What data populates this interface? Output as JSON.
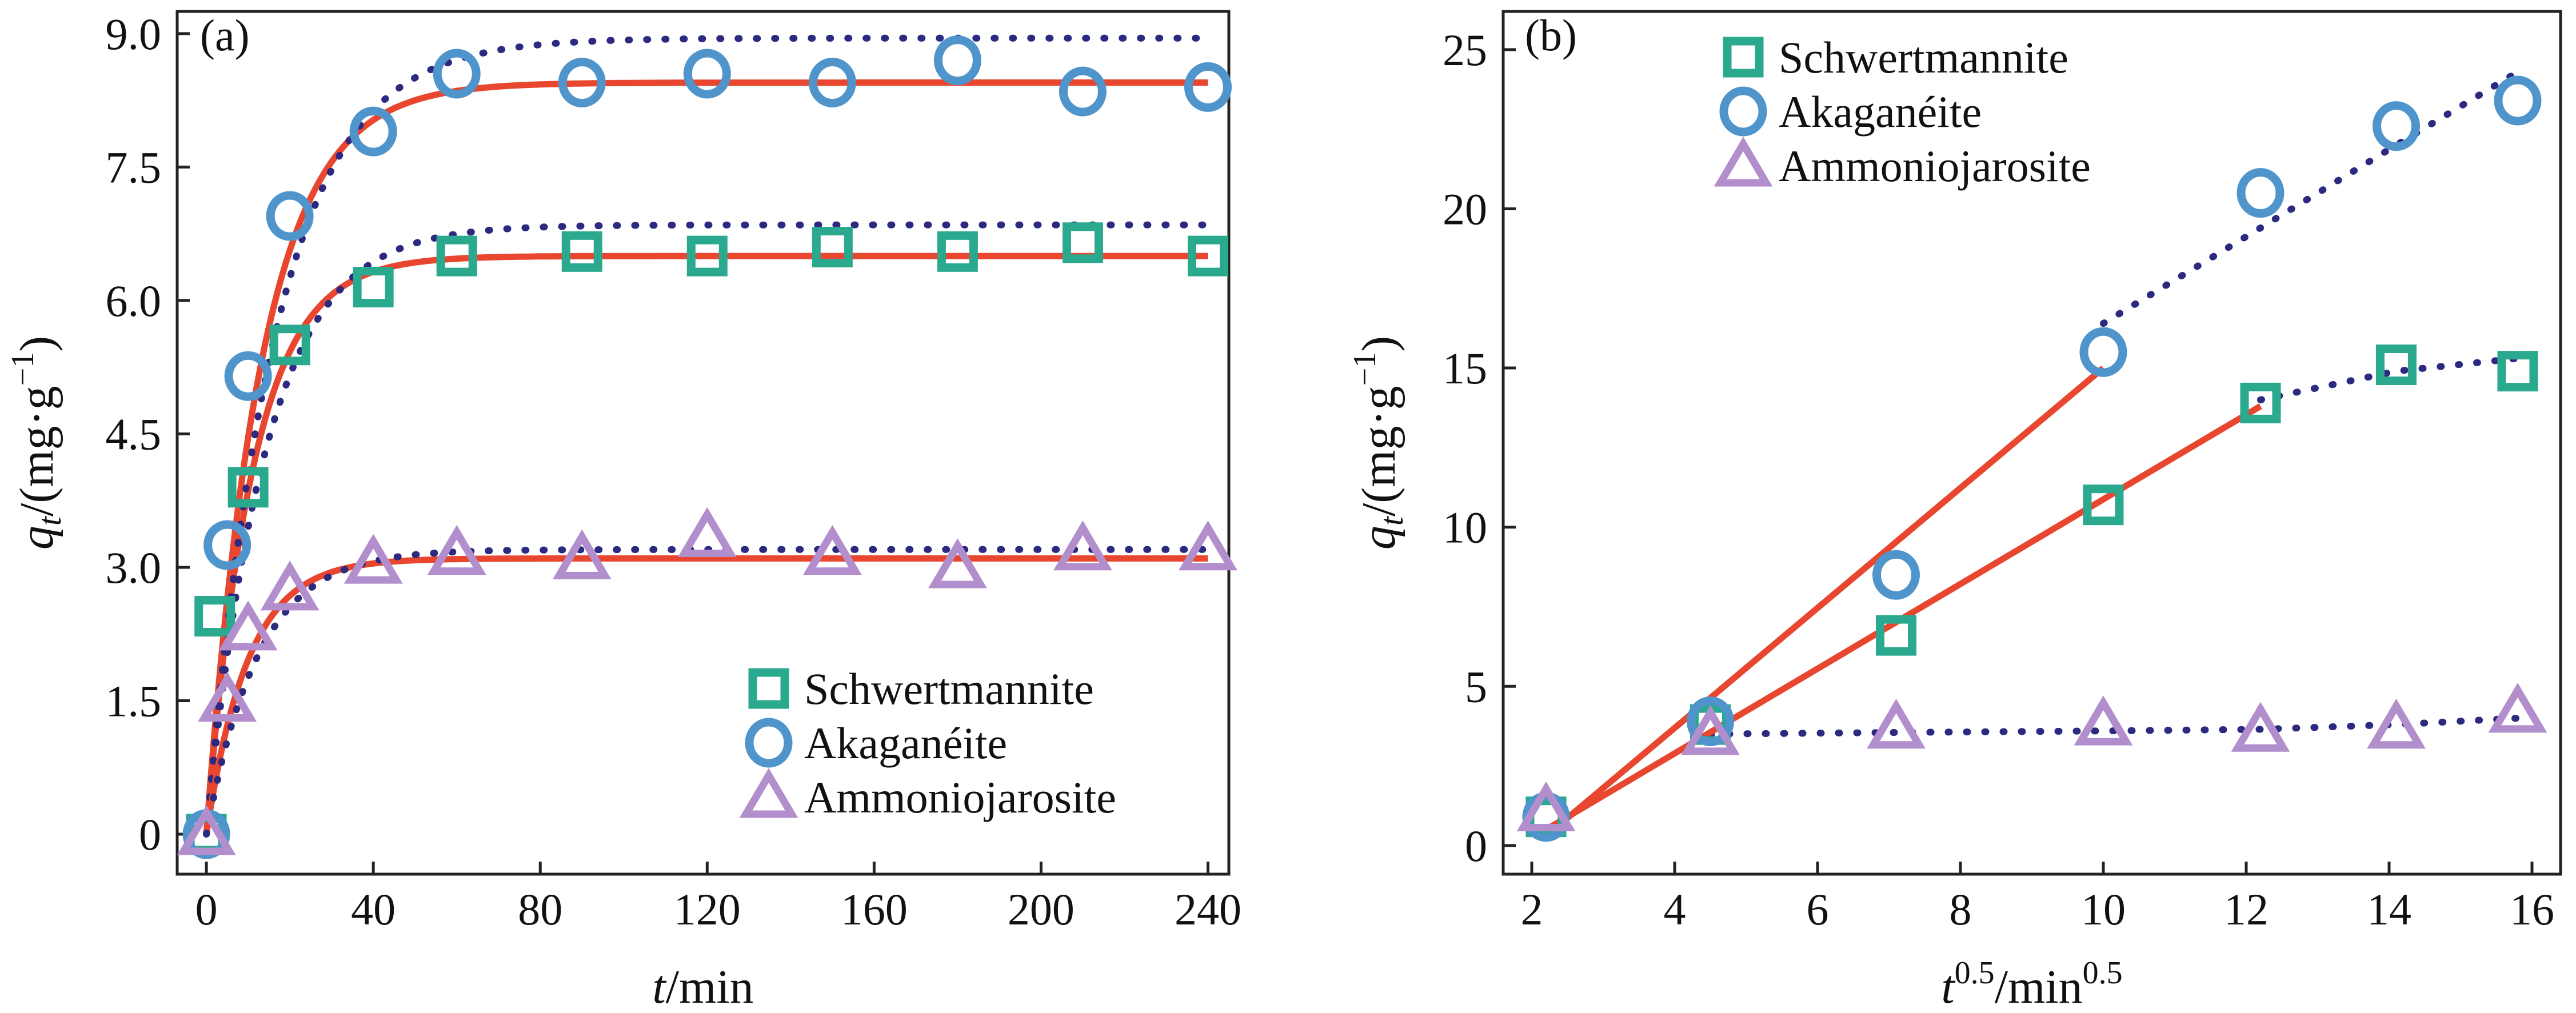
{
  "colors": {
    "schwertmannite": "#2aa98f",
    "akaganeite": "#4f95cc",
    "ammoniojarosite": "#b28ecd",
    "fit_red": "#e8462e",
    "fit_blue": "#2b2a80"
  },
  "chart_data": [
    {
      "type": "scatter",
      "panel_label": "(a)",
      "xlabel_italic": "t",
      "xlabel_rest": "/min",
      "ylabel_italic": "q",
      "ylabel_sub": "t",
      "ylabel_rest": "/(mg·g",
      "ylabel_sup": "−1",
      "ylabel_close": ")",
      "xlim": [
        -7,
        245
      ],
      "ylim": [
        -0.45,
        9.25
      ],
      "x_ticks": [
        "0",
        "40",
        "80",
        "120",
        "160",
        "200",
        "240"
      ],
      "y_ticks": [
        "0",
        "1.5",
        "3.0",
        "4.5",
        "6.0",
        "7.5",
        "9.0"
      ],
      "legend_position": "bottom-right",
      "series": [
        {
          "name": "Schwertmannite",
          "marker": "square",
          "x": [
            0,
            2,
            10,
            20,
            40,
            60,
            90,
            120,
            150,
            180,
            210,
            240
          ],
          "y": [
            0.0,
            2.45,
            3.9,
            5.5,
            6.15,
            6.5,
            6.55,
            6.5,
            6.6,
            6.55,
            6.65,
            6.5
          ],
          "fits": [
            {
              "style": "solid",
              "qe": 6.5,
              "k": 0.09
            },
            {
              "style": "dotted",
              "qe": 6.85,
              "k1": 0.07,
              "c": 0.1
            }
          ]
        },
        {
          "name": "Akaganéite",
          "marker": "circle",
          "x": [
            0,
            5,
            10,
            20,
            40,
            60,
            90,
            120,
            150,
            180,
            210,
            240
          ],
          "y": [
            0.0,
            3.25,
            5.15,
            6.95,
            7.9,
            8.55,
            8.45,
            8.55,
            8.45,
            8.7,
            8.35,
            8.4
          ],
          "fits": [
            {
              "style": "solid",
              "qe": 8.45,
              "k": 0.075
            },
            {
              "style": "dotted",
              "qe": 8.95,
              "k1": 0.06,
              "c": 0.1
            }
          ]
        },
        {
          "name": "Ammoniojarosite",
          "marker": "triangle",
          "x": [
            0,
            5,
            10,
            20,
            40,
            60,
            90,
            120,
            150,
            180,
            210,
            240
          ],
          "y": [
            0.0,
            1.5,
            2.3,
            2.75,
            3.05,
            3.15,
            3.1,
            3.35,
            3.15,
            3.0,
            3.2,
            3.2
          ],
          "fits": [
            {
              "style": "solid",
              "qe": 3.1,
              "k": 0.1
            },
            {
              "style": "dotted",
              "qe": 3.2,
              "k1": 0.08,
              "c": 0.1
            }
          ]
        }
      ]
    },
    {
      "type": "scatter",
      "panel_label": "(b)",
      "xlabel_italic": "t",
      "xlabel_sup1": "0.5",
      "xlabel_rest": "/min",
      "xlabel_sup2": "0.5",
      "ylabel_italic": "q",
      "ylabel_sub": "t",
      "ylabel_rest": "/(mg·g",
      "ylabel_sup": "−1",
      "ylabel_close": ")",
      "xlim": [
        1.6,
        16.4
      ],
      "ylim": [
        -0.9,
        26.2
      ],
      "x_ticks": [
        "2",
        "4",
        "6",
        "8",
        "10",
        "12",
        "14",
        "16"
      ],
      "y_ticks": [
        "0",
        "5",
        "10",
        "15",
        "20",
        "25"
      ],
      "legend_position": "top-left",
      "series": [
        {
          "name": "Schwertmannite",
          "marker": "square",
          "x": [
            2.2,
            4.5,
            7.1,
            10.0,
            12.2,
            14.1,
            15.8
          ],
          "y": [
            0.9,
            3.8,
            6.6,
            10.7,
            13.9,
            15.1,
            14.9
          ],
          "fit_line": {
            "x": [
              2.2,
              12.2
            ],
            "y": [
              0.5,
              13.8
            ]
          },
          "dotted": {
            "x": [
              12.2,
              14.1,
              15.8
            ],
            "y": [
              14.0,
              14.9,
              15.3
            ]
          }
        },
        {
          "name": "Akaganéite",
          "marker": "circle",
          "x": [
            2.2,
            4.5,
            7.1,
            10.0,
            12.2,
            14.1,
            15.8
          ],
          "y": [
            0.9,
            3.9,
            8.5,
            15.5,
            20.5,
            22.6,
            23.4
          ],
          "fit_line": {
            "x": [
              2.2,
              10.0
            ],
            "y": [
              0.3,
              15.0
            ]
          },
          "dotted": {
            "x": [
              10.0,
              12.2,
              14.1,
              15.8
            ],
            "y": [
              16.4,
              19.4,
              22.0,
              24.3
            ]
          }
        },
        {
          "name": "Ammoniojarosite",
          "marker": "triangle",
          "x": [
            2.2,
            4.5,
            7.1,
            10.0,
            12.2,
            14.1,
            15.8
          ],
          "y": [
            1.1,
            3.5,
            3.7,
            3.8,
            3.6,
            3.7,
            4.2
          ],
          "dotted": {
            "x": [
              4.5,
              7.1,
              10.0,
              12.2,
              14.1,
              15.8
            ],
            "y": [
              3.5,
              3.55,
              3.6,
              3.65,
              3.8,
              4.0
            ]
          }
        }
      ]
    }
  ]
}
